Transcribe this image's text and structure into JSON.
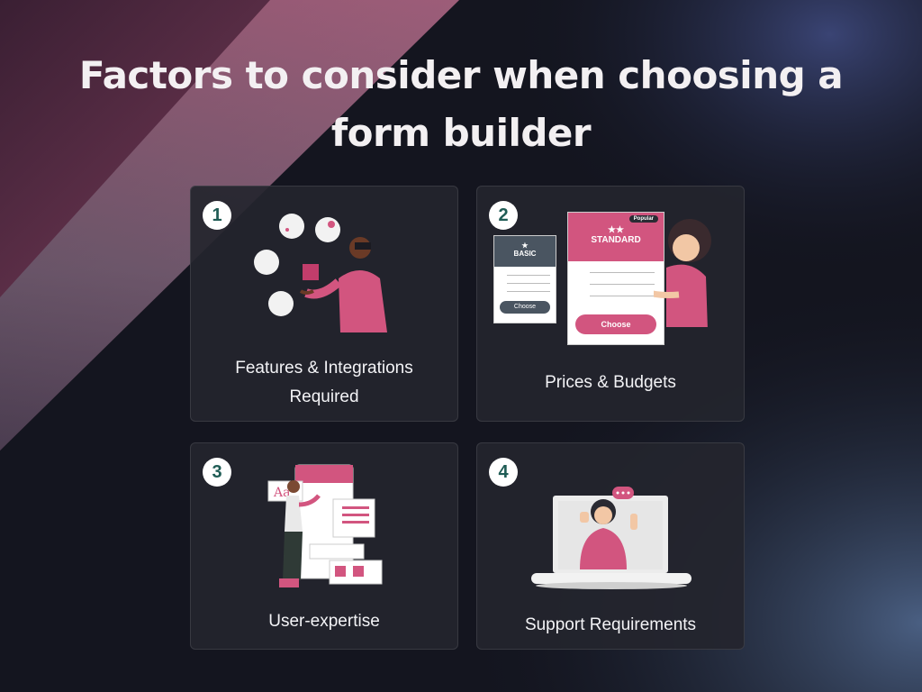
{
  "title": {
    "line1": "Factors to consider when choosing a",
    "line2": "form builder"
  },
  "colors": {
    "accent": "#d2557f",
    "background": "#121520",
    "card": "#24252e",
    "number_text": "#1f5c55"
  },
  "cards": [
    {
      "number": "1",
      "label_line1": "Features & Integrations",
      "label_line2": "Required",
      "illustration": "person-with-feature-icons"
    },
    {
      "number": "2",
      "label": "Prices & Budgets",
      "illustration": "pricing-plans",
      "basic_plan": {
        "name": "BASIC",
        "button": "Choose"
      },
      "standard_plan": {
        "name": "STANDARD",
        "badge": "Popular",
        "button": "Choose"
      }
    },
    {
      "number": "3",
      "label": "User-expertise",
      "illustration": "person-editing-app-ui",
      "font_sample": "Aa"
    },
    {
      "number": "4",
      "label": "Support Requirements",
      "illustration": "support-agent-laptop"
    }
  ]
}
